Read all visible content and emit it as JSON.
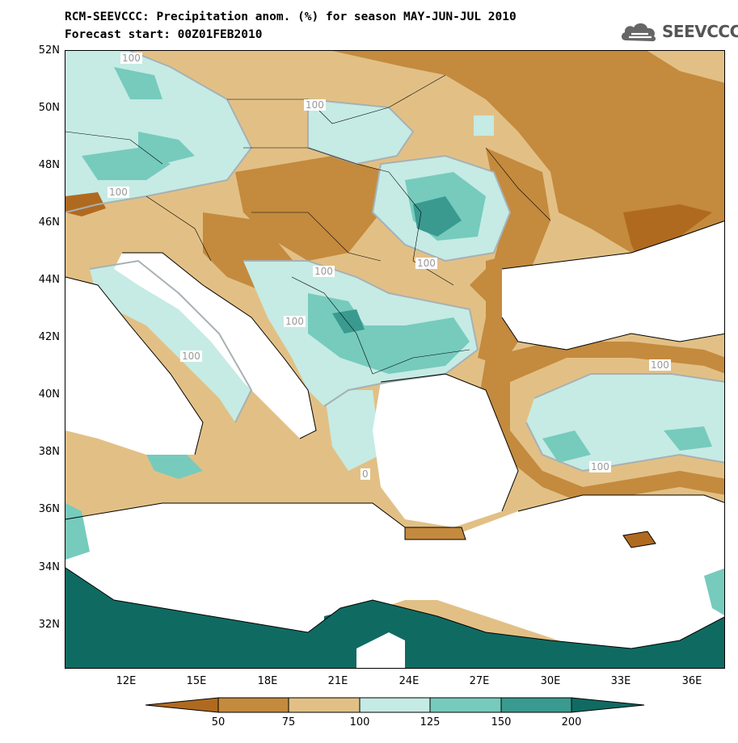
{
  "title": {
    "line1": "RCM-SEEVCCC: Precipitation anom. (%) for season MAY-JUN-JUL 2010",
    "line2": "Forecast start: 00Z01FEB2010"
  },
  "logo": {
    "text": "SEEVCCC",
    "icon": "cloud-icon"
  },
  "map": {
    "lat_labels": [
      "52N",
      "50N",
      "48N",
      "46N",
      "44N",
      "42N",
      "40N",
      "38N",
      "36N",
      "34N",
      "32N"
    ],
    "lon_labels": [
      "12E",
      "15E",
      "18E",
      "21E",
      "24E",
      "27E",
      "30E",
      "33E",
      "36E"
    ],
    "contour_labels": [
      "100",
      "100",
      "100",
      "100",
      "100",
      "100",
      "100",
      "100",
      "100",
      "100",
      "0"
    ],
    "colors": {
      "lt50": "#b06a1f",
      "50_75": "#c48a3e",
      "75_100": "#e2c085",
      "100_125": "#c5ebe4",
      "125_150": "#76cbbd",
      "150_200": "#3a9a90",
      "gt200": "#0f6b62",
      "sea": "#ffffff",
      "contour": "#a8b0b4"
    }
  },
  "colorbar": {
    "labels": [
      "50",
      "75",
      "100",
      "125",
      "150",
      "200"
    ],
    "colors": [
      "#b06a1f",
      "#c48a3e",
      "#e2c085",
      "#c5ebe4",
      "#76cbbd",
      "#3a9a90",
      "#0f6b62"
    ]
  }
}
